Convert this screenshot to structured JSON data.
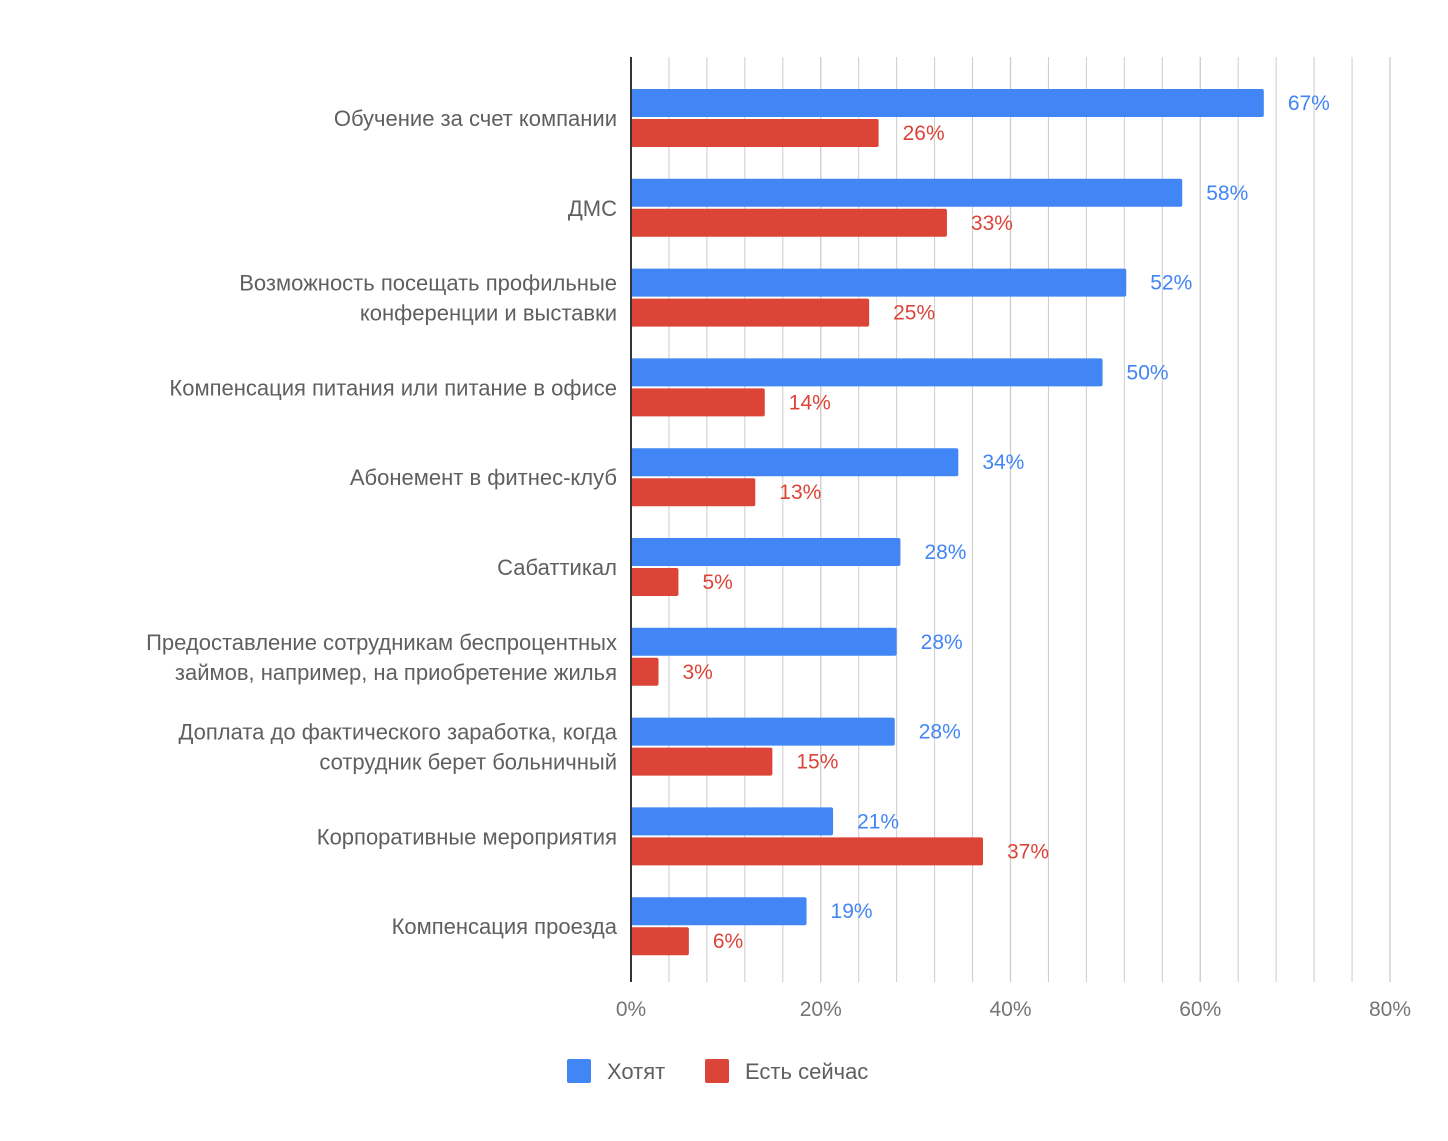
{
  "chart_data": {
    "type": "bar",
    "orientation": "horizontal",
    "title": "",
    "xlabel": "",
    "ylabel": "",
    "xlim": [
      0,
      80
    ],
    "x_ticks": [
      0,
      20,
      40,
      60,
      80
    ],
    "x_tick_labels": [
      "0%",
      "20%",
      "40%",
      "60%",
      "80%"
    ],
    "minor_gridlines": true,
    "legend_position": "bottom",
    "categories": [
      [
        "Обучение за счет компании"
      ],
      [
        "ДМС"
      ],
      [
        "Возможность посещать профильные",
        "конференции и выставки"
      ],
      [
        "Компенсация питания или питание в офисе"
      ],
      [
        "Абонемент в фитнес-клуб"
      ],
      [
        "Сабаттикал"
      ],
      [
        "Предоставление сотрудникам беспроцентных",
        "займов, например, на приобретение жилья"
      ],
      [
        "Доплата до фактического заработка, когда",
        "сотрудник берет больничный"
      ],
      [
        "Корпоративные мероприятия"
      ],
      [
        "Компенсация проезда"
      ]
    ],
    "series": [
      {
        "name": "Хотят",
        "color": "#4285F4",
        "values": [
          66.7,
          58.1,
          52.2,
          49.7,
          34.5,
          28.4,
          28.0,
          27.8,
          21.3,
          18.5
        ],
        "labels": [
          "67%",
          "58%",
          "52%",
          "50%",
          "34%",
          "28%",
          "28%",
          "28%",
          "21%",
          "19%"
        ]
      },
      {
        "name": "Есть сейчас",
        "color": "#DB4437",
        "values": [
          26.1,
          33.3,
          25.1,
          14.1,
          13.1,
          5.0,
          2.9,
          14.9,
          37.1,
          6.1
        ],
        "labels": [
          "26%",
          "33%",
          "25%",
          "14%",
          "13%",
          "5%",
          "3%",
          "15%",
          "37%",
          "6%"
        ]
      }
    ]
  },
  "colors": {
    "axis_text": "#757575",
    "category_text": "#5f5f5f",
    "grid": "#cccccc",
    "axis_line": "#333333"
  }
}
